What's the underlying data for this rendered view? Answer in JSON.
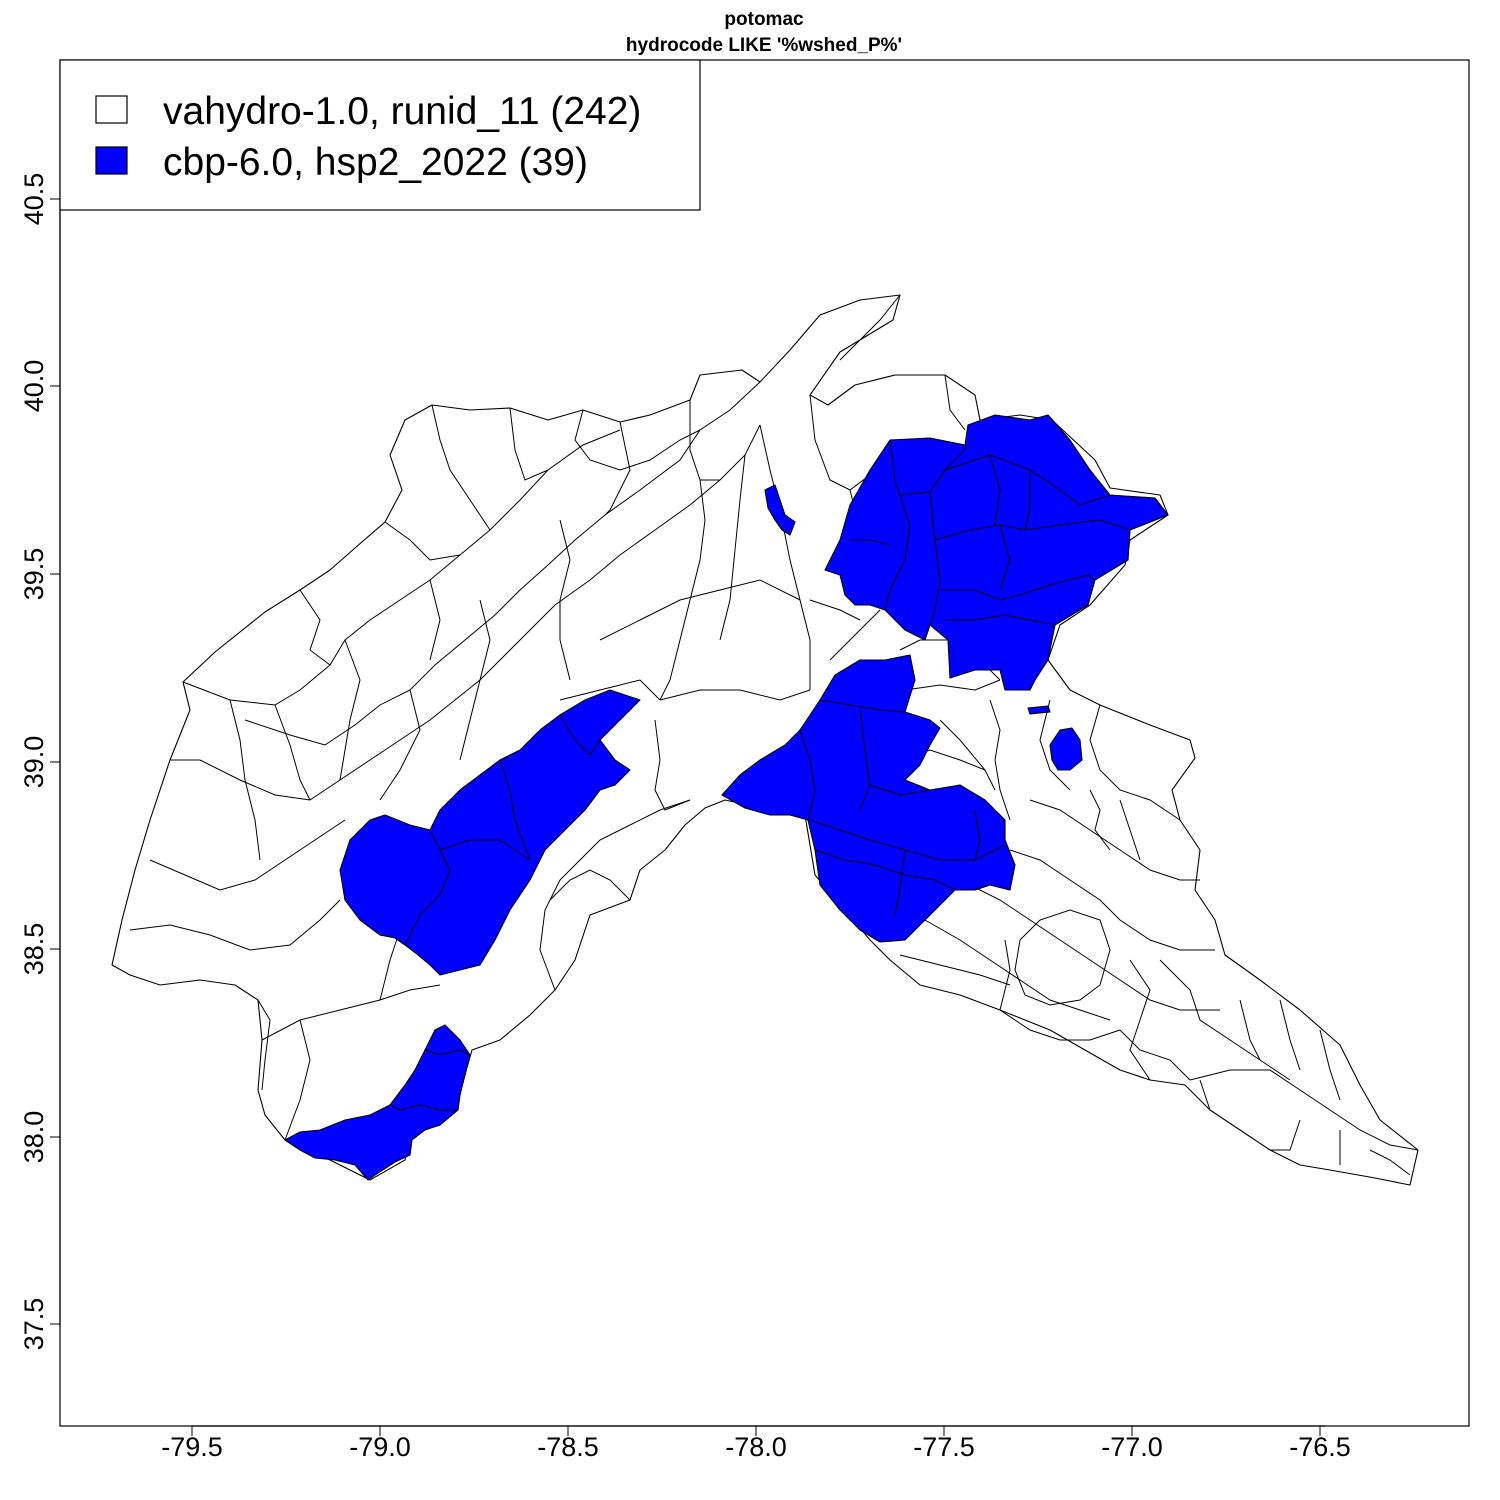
{
  "title": "potomac",
  "subtitle": "hydrocode LIKE '%wshed_P%'",
  "legend": [
    {
      "label": "vahydro-1.0, runid_11 (242)",
      "fill": "#ffffff"
    },
    {
      "label": "cbp-6.0, hsp2_2022 (39)",
      "fill": "#0000ff"
    }
  ],
  "colors": {
    "highlight": "#0000ff",
    "base": "#ffffff",
    "outline": "#000000"
  },
  "axes": {
    "x_ticks": [
      "-79.5",
      "-79.0",
      "-78.5",
      "-78.0",
      "-77.5",
      "-77.0",
      "-76.5"
    ],
    "y_ticks": [
      "37.5",
      "38.0",
      "38.5",
      "39.0",
      "39.5",
      "40.0",
      "40.5"
    ],
    "xlim": [
      -79.85,
      -76.1
    ],
    "ylim": [
      37.2,
      40.85
    ]
  },
  "chart_data": {
    "type": "choropleth",
    "title": "potomac",
    "subtitle": "hydrocode LIKE '%wshed_P%'",
    "classes": [
      {
        "name": "vahydro-1.0, runid_11",
        "count": 242,
        "color": "#ffffff"
      },
      {
        "name": "cbp-6.0, hsp2_2022",
        "count": 39,
        "color": "#0000ff"
      }
    ],
    "xlim": [
      -79.85,
      -76.1
    ],
    "ylim": [
      37.2,
      40.85
    ],
    "legend_position": "top-left",
    "grid": false
  }
}
